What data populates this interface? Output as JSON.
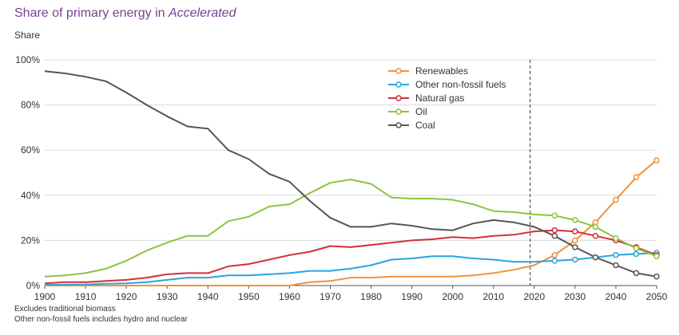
{
  "title_prefix": "Share of primary energy in ",
  "title_emph": "Accelerated",
  "notes": [
    "Excludes traditional biomass",
    "Other non-fossil fuels includes hydro and nuclear"
  ],
  "chart_data": {
    "type": "line",
    "ylabel": "Share",
    "x": [
      1900,
      1905,
      1910,
      1915,
      1920,
      1925,
      1930,
      1935,
      1940,
      1945,
      1950,
      1955,
      1960,
      1965,
      1970,
      1975,
      1980,
      1985,
      1990,
      1995,
      2000,
      2005,
      2010,
      2015,
      2020,
      2025,
      2030,
      2035,
      2040,
      2045,
      2050
    ],
    "xticks": [
      1900,
      1910,
      1920,
      1930,
      1940,
      1950,
      1960,
      1970,
      1980,
      1990,
      2000,
      2010,
      2020,
      2030,
      2040,
      2050
    ],
    "xlim": [
      1900,
      2050
    ],
    "ylim": [
      0,
      100
    ],
    "yticks": [
      0,
      20,
      40,
      60,
      80,
      100
    ],
    "ytick_labels": [
      "0%",
      "20%",
      "40%",
      "60%",
      "80%",
      "100%"
    ],
    "grid": true,
    "legend_position": "top-right",
    "divider_year": 2019,
    "series": [
      {
        "name": "Renewables",
        "color": "#f0923a",
        "values": [
          0,
          0,
          0,
          0,
          0,
          0,
          0,
          0,
          0,
          0,
          0,
          0,
          0,
          1.5,
          2,
          3.5,
          3.5,
          4,
          4,
          4,
          4,
          4.5,
          5.5,
          7,
          9,
          13.5,
          20,
          28,
          38,
          48,
          55.5
        ]
      },
      {
        "name": "Other non-fossil fuels",
        "color": "#2aa4dd",
        "values": [
          0.3,
          0.4,
          0.5,
          0.8,
          1,
          1.5,
          2.5,
          3.5,
          3.5,
          4.5,
          4.5,
          5,
          5.5,
          6.5,
          6.5,
          7.5,
          9,
          11.5,
          12,
          13,
          13,
          12,
          11.5,
          10.5,
          10.5,
          11,
          11.5,
          12.5,
          13.5,
          14,
          14.5
        ]
      },
      {
        "name": "Natural gas",
        "color": "#d62d3b",
        "values": [
          1,
          1.5,
          1.5,
          2,
          2.5,
          3.5,
          5,
          5.5,
          5.5,
          8.5,
          9.5,
          11.5,
          13.5,
          15,
          17.5,
          17,
          18,
          19,
          20,
          20.5,
          21.5,
          21,
          22,
          22.5,
          24,
          24.5,
          24,
          22,
          20,
          17,
          13.5
        ]
      },
      {
        "name": "Oil",
        "color": "#8cc43c",
        "values": [
          4,
          4.5,
          5.5,
          7.5,
          11,
          15.5,
          19,
          22,
          22,
          28.5,
          30.5,
          35,
          36,
          41,
          45.5,
          47,
          45,
          39,
          38.5,
          38.5,
          38,
          36,
          33,
          32.5,
          31.5,
          31,
          29,
          26,
          21,
          16.5,
          13
        ]
      },
      {
        "name": "Coal",
        "color": "#555555",
        "values": [
          95,
          94,
          92.5,
          90.5,
          85.5,
          80,
          75,
          70.5,
          69.5,
          60,
          56,
          49.5,
          46,
          37.5,
          30,
          26,
          26,
          27.5,
          26.5,
          25,
          24.5,
          27.5,
          29,
          28,
          26,
          22,
          17,
          12.5,
          9,
          5.5,
          4
        ]
      }
    ]
  }
}
